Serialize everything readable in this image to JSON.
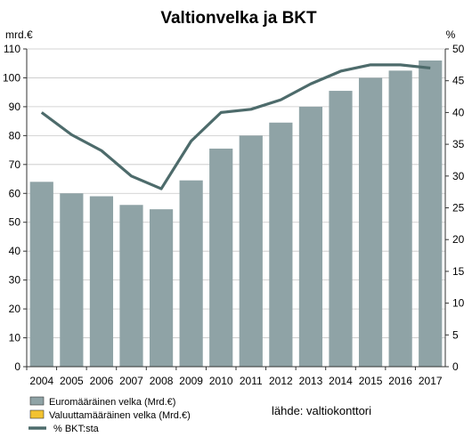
{
  "chart_data": {
    "type": "bar",
    "title": "Valtionvelka ja BKT",
    "left_unit": "mrd.€",
    "right_unit": "%",
    "categories": [
      "2004",
      "2005",
      "2006",
      "2007",
      "2008",
      "2009",
      "2010",
      "2011",
      "2012",
      "2013",
      "2014",
      "2015",
      "2016",
      "2017"
    ],
    "ylim": [
      0,
      110
    ],
    "yticks": [
      0,
      10,
      20,
      30,
      40,
      50,
      60,
      70,
      80,
      90,
      100,
      110
    ],
    "y2lim": [
      0,
      50
    ],
    "y2ticks": [
      0,
      5,
      10,
      15,
      20,
      25,
      30,
      35,
      40,
      45,
      50
    ],
    "grid": true,
    "series": [
      {
        "name": "Euromääräinen velka (Mrd.€)",
        "kind": "bar",
        "axis": "left",
        "color": "#8fa3a6",
        "values": [
          64,
          60,
          59,
          56,
          54.5,
          64.5,
          75.5,
          80,
          84.5,
          90,
          95.5,
          100,
          102.5,
          106
        ]
      },
      {
        "name": "Valuuttamääräinen velka (Mrd.€)",
        "kind": "bar",
        "axis": "left",
        "color": "#f2c230",
        "values": [
          0,
          0,
          0,
          0,
          0,
          0,
          0,
          0,
          0,
          0,
          0,
          0,
          0,
          0
        ]
      },
      {
        "name": "% BKT:sta",
        "kind": "line",
        "axis": "right",
        "color": "#4d6b6b",
        "values": [
          40,
          36.5,
          34,
          30,
          28,
          35.5,
          40,
          40.5,
          42,
          44.5,
          46.5,
          47.5,
          47.5,
          47
        ]
      }
    ],
    "legend_position": "bottom-left",
    "source": "lähde: valtiokonttori"
  }
}
